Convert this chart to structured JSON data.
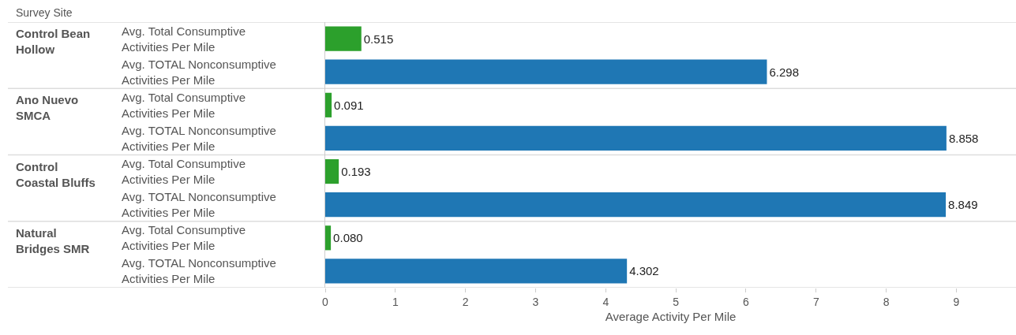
{
  "chart_data": {
    "type": "bar",
    "orientation": "horizontal",
    "ylabel": "Survey Site",
    "xlabel": "Average Activity Per Mile",
    "categories": [
      "Avg. Total Consumptive\nActivities Per Mile",
      "Avg. TOTAL Nonconsumptive\nActivities Per Mile",
      "Avg. Total Consumptive\nActivities Per Mile",
      "Avg. TOTAL Nonconsumptive\nActivities Per Mile",
      "Avg. Total Consumptive\nActivities Per Mile",
      "Avg. TOTAL Nonconsumptive\nActivities Per Mile",
      "Avg. Total Consumptive\nActivities Per Mile",
      "Avg. TOTAL Nonconsumptive\nActivities Per Mile"
    ],
    "values": [
      0.515,
      6.298,
      0.091,
      8.858,
      0.193,
      8.849,
      0.08,
      4.302
    ],
    "value_labels": [
      "0.515",
      "6.298",
      "0.091",
      "8.858",
      "0.193",
      "8.849",
      "0.080",
      "4.302"
    ],
    "colors": [
      "#2ca02c",
      "#1f77b4",
      "#2ca02c",
      "#1f77b4",
      "#2ca02c",
      "#1f77b4",
      "#2ca02c",
      "#1f77b4"
    ],
    "annotations": [
      "Control Bean\nHollow",
      "Ano Nuevo\nSMCA",
      "Control\nCoastal Bluffs",
      "Natural\nBridges SMR"
    ],
    "xlim": [
      0,
      9.85
    ],
    "xticks": [
      0,
      1,
      2,
      3,
      4,
      5,
      6,
      7,
      8,
      9
    ],
    "grid": false
  }
}
